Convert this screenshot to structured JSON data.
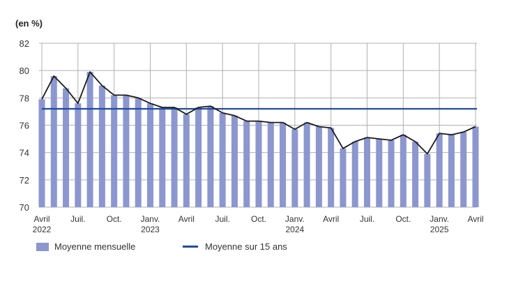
{
  "unit_label": "(en %)",
  "colors": {
    "bar": "#8c96cf",
    "line_monthly": "#1a1a1a",
    "avg_line": "#1f4e9c",
    "grid": "#b0b0b0"
  },
  "legend": {
    "bar_label": "Moyenne mensuelle",
    "line_label": "Moyenne sur 15 ans"
  },
  "chart_data": {
    "type": "bar",
    "title": "",
    "xlabel": "",
    "ylabel": "(en %)",
    "ylim": [
      70,
      82
    ],
    "yticks": [
      70,
      72,
      74,
      76,
      78,
      80,
      82
    ],
    "grid": true,
    "legend_position": "bottom",
    "categories": [
      "2022-04",
      "2022-05",
      "2022-06",
      "2022-07",
      "2022-08",
      "2022-09",
      "2022-10",
      "2022-11",
      "2022-12",
      "2023-01",
      "2023-02",
      "2023-03",
      "2023-04",
      "2023-05",
      "2023-06",
      "2023-07",
      "2023-08",
      "2023-09",
      "2023-10",
      "2023-11",
      "2023-12",
      "2024-01",
      "2024-02",
      "2024-03",
      "2024-04",
      "2024-05",
      "2024-06",
      "2024-07",
      "2024-08",
      "2024-09",
      "2024-10",
      "2024-11",
      "2024-12",
      "2025-01",
      "2025-02",
      "2025-03",
      "2025-04"
    ],
    "x_tick_labels": [
      {
        "index": 0,
        "lines": [
          "Avril",
          "2022"
        ]
      },
      {
        "index": 3,
        "lines": [
          "Juil."
        ]
      },
      {
        "index": 6,
        "lines": [
          "Oct."
        ]
      },
      {
        "index": 9,
        "lines": [
          "Janv.",
          "2023"
        ]
      },
      {
        "index": 12,
        "lines": [
          "Avril"
        ]
      },
      {
        "index": 15,
        "lines": [
          "Juil."
        ]
      },
      {
        "index": 18,
        "lines": [
          "Oct."
        ]
      },
      {
        "index": 21,
        "lines": [
          "Janv.",
          "2024"
        ]
      },
      {
        "index": 24,
        "lines": [
          "Avril"
        ]
      },
      {
        "index": 27,
        "lines": [
          "Juil."
        ]
      },
      {
        "index": 30,
        "lines": [
          "Oct."
        ]
      },
      {
        "index": 33,
        "lines": [
          "Janv.",
          "2025"
        ]
      },
      {
        "index": 36,
        "lines": [
          "Avril"
        ]
      }
    ],
    "series": [
      {
        "name": "Moyenne mensuelle",
        "type": "bar+line",
        "values": [
          77.9,
          79.6,
          78.7,
          77.6,
          79.9,
          78.9,
          78.2,
          78.2,
          78.0,
          77.6,
          77.3,
          77.3,
          76.8,
          77.3,
          77.4,
          76.9,
          76.7,
          76.3,
          76.3,
          76.2,
          76.2,
          75.7,
          76.2,
          75.9,
          75.8,
          74.3,
          74.8,
          75.1,
          75.0,
          74.9,
          75.3,
          74.8,
          73.9,
          75.4,
          75.3,
          75.5,
          75.9
        ]
      },
      {
        "name": "Moyenne sur 15 ans",
        "type": "hline",
        "value": 77.2
      }
    ]
  }
}
